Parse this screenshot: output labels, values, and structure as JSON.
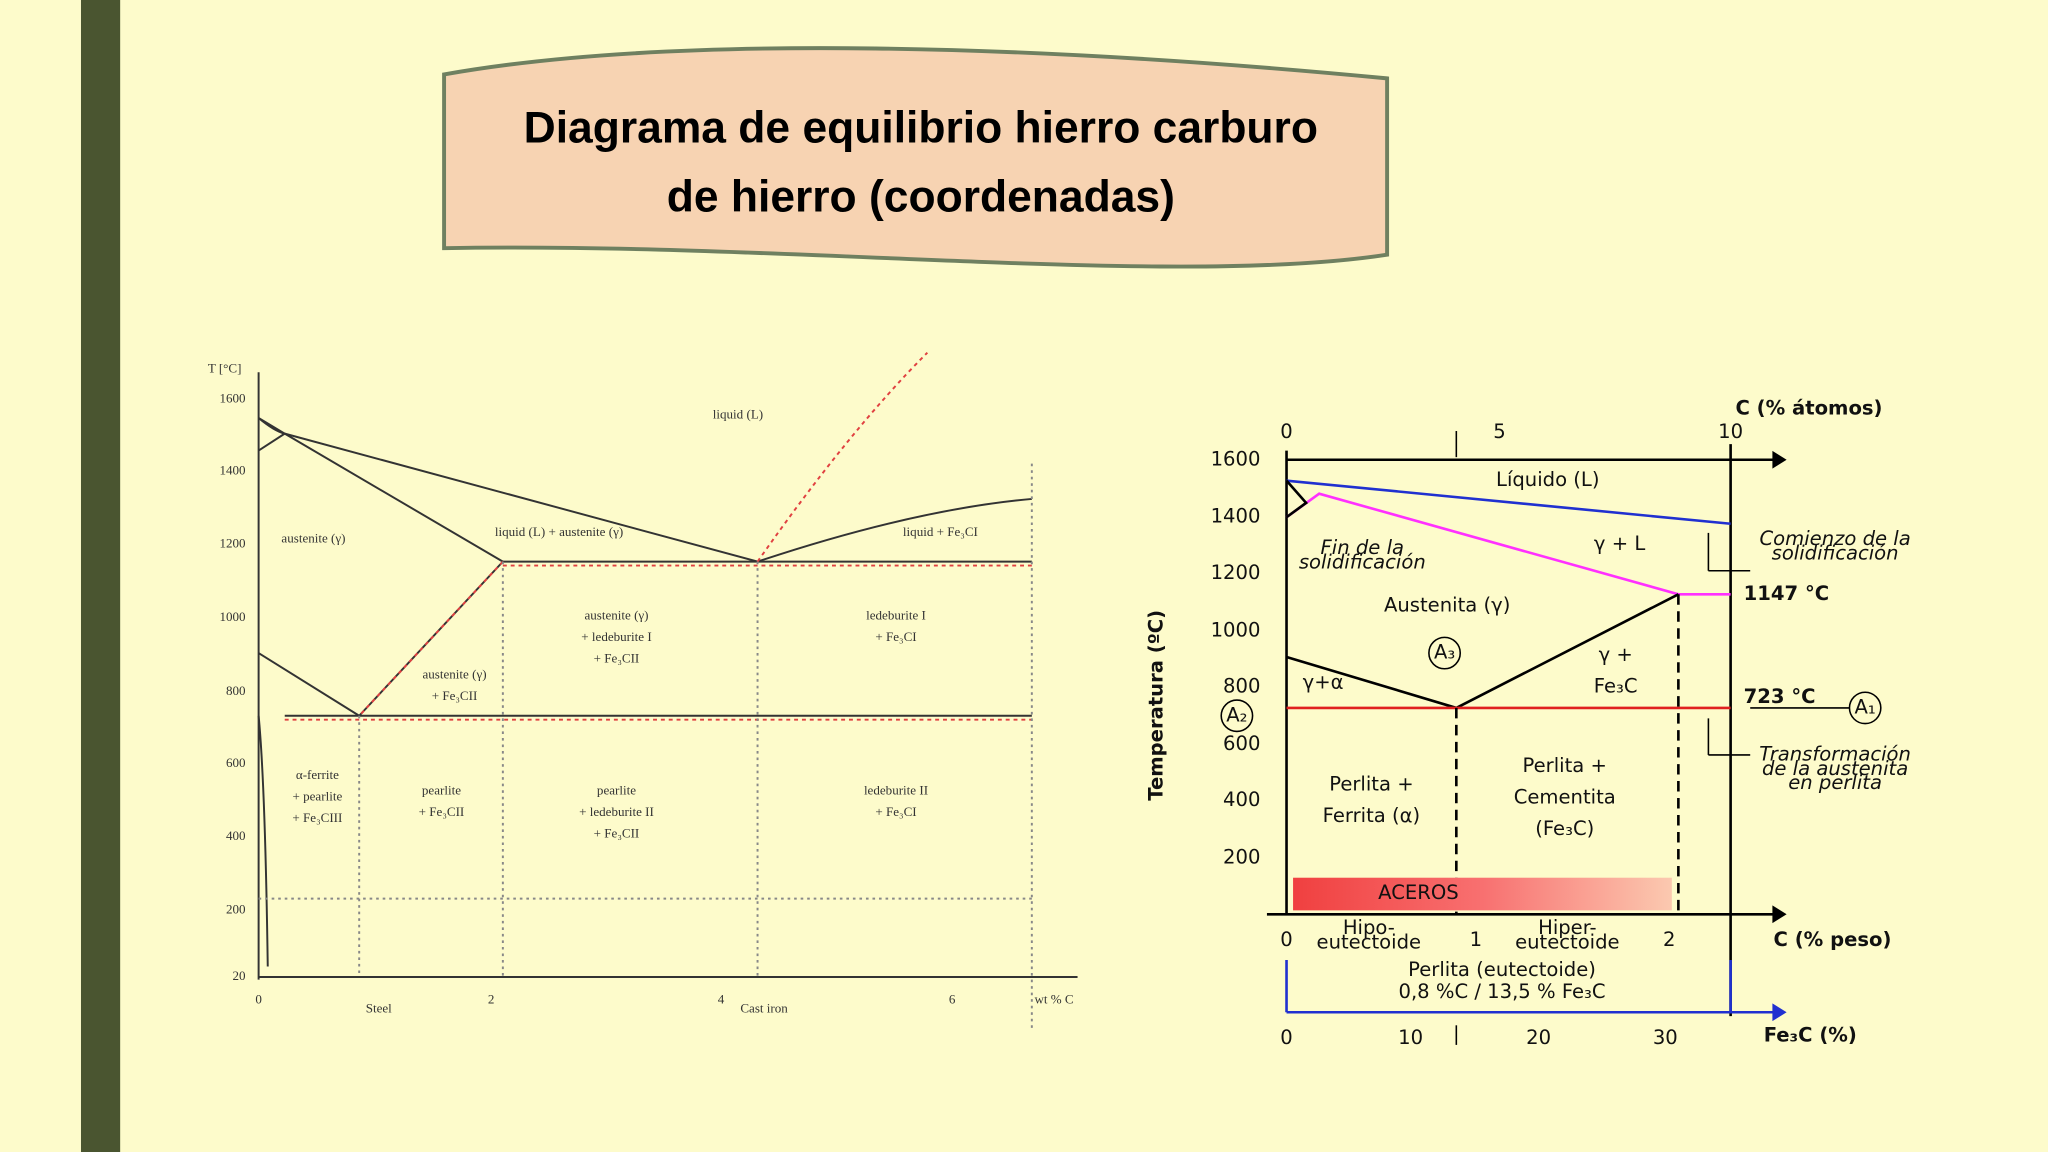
{
  "header": {
    "title": [
      "Diagrama de equilibrio hierro carburo",
      "de hierro (coordenadas)"
    ]
  },
  "left_diagram": {
    "y_axis_label": "T [°C]",
    "y_ticks": [
      "1600",
      "1400",
      "1200",
      "1000",
      "800",
      "600",
      "400",
      "200",
      "20"
    ],
    "x_ticks": [
      "0",
      "2",
      "4",
      "6"
    ],
    "x_axis_label": "wt % C",
    "x_ranges": [
      "Steel",
      "Cast iron"
    ],
    "regions": [
      [
        "liquid (L)"
      ],
      [
        "austenite (γ)"
      ],
      [
        "liquid (L) + austenite (γ)"
      ],
      [
        "liquid + Fe₃CI"
      ],
      [
        "austenite (γ)",
        "+ ledeburite I",
        "+ Fe₃CII"
      ],
      [
        "ledeburite I",
        "+ Fe₃CI"
      ],
      [
        "austenite (γ)",
        "+ Fe₃CII"
      ],
      [
        "α-ferrite",
        "+ pearlite",
        "+ Fe₃CIII"
      ],
      [
        "pearlite",
        "+ Fe₃CII"
      ],
      [
        "pearlite",
        "+ ledeburite II",
        "+ Fe₃CII"
      ],
      [
        "ledeburite II",
        "+ Fe₃CI"
      ]
    ]
  },
  "right_diagram": {
    "y_axis_label": "Temperatura (ºC)",
    "y_ticks": [
      "1600",
      "1400",
      "1200",
      "1000",
      "800",
      "600",
      "400",
      "200"
    ],
    "top_axis": {
      "label": "C (% átomos)",
      "ticks": [
        "0",
        "5",
        "10"
      ]
    },
    "bottom_axis": {
      "label": "C (% peso)",
      "ticks": [
        "0",
        "1",
        "2"
      ]
    },
    "fe3c_axis": {
      "label": "Fe₃C (%)",
      "ticks": [
        "0",
        "10",
        "20",
        "30"
      ]
    },
    "regions": [
      [
        "Líquido (L)"
      ],
      [
        "γ + L"
      ],
      [
        "Austenita (γ)"
      ],
      [
        "γ +",
        "Fe₃C"
      ],
      [
        "γ+α"
      ],
      [
        "Perlita +",
        "Ferrita (α)"
      ],
      [
        "Perlita +",
        "Cementita",
        "(Fe₃C)"
      ],
      [
        "ACEROS"
      ],
      [
        "Hipo-",
        "eutectoide"
      ],
      [
        "Hiper-",
        "eutectoide"
      ]
    ],
    "annotations": [
      [
        "Fin de la",
        "solidificación"
      ],
      [
        "Comienzo de la",
        "solidificación"
      ],
      [
        "Transformación",
        "de la austenita",
        "en perlita"
      ]
    ],
    "temperatures": [
      "1147 °C",
      "723 °C"
    ],
    "markers": [
      "A₁",
      "A₂",
      "A₃"
    ],
    "eutectoid": [
      "Perlita (eutectoide)",
      "0,8 %C / 13,5 % Fe₃C"
    ]
  }
}
